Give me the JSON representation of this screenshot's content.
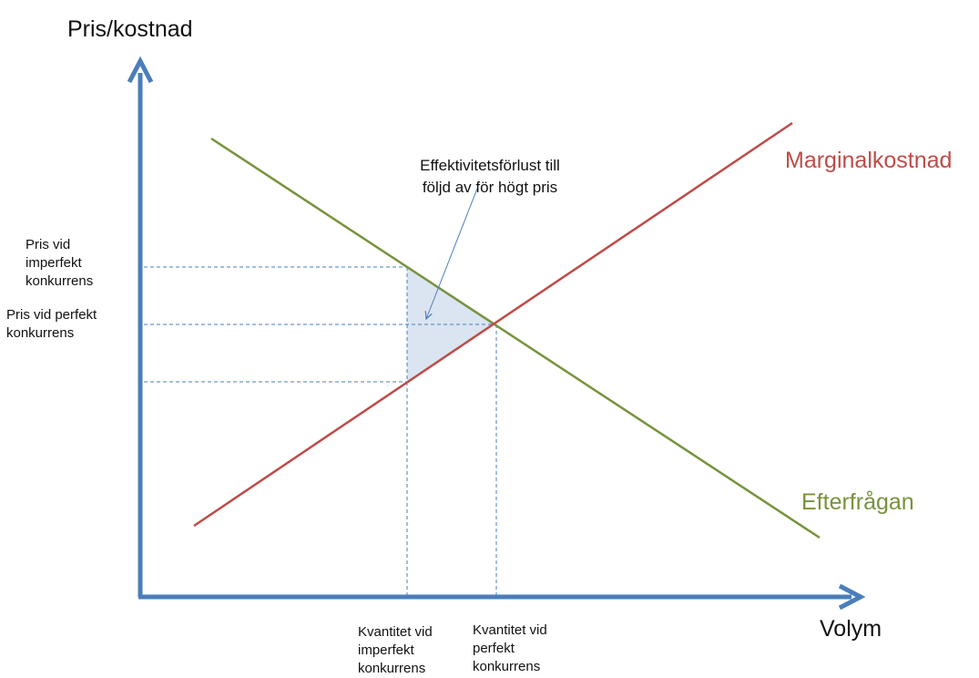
{
  "axes": {
    "y_title": "Pris/kostnad",
    "x_title": "Volym"
  },
  "curves": {
    "supply_label": "Marginalkostnad",
    "demand_label": "Efterfrågan"
  },
  "price_labels": {
    "imperfect": [
      "Pris vid",
      "imperfekt",
      "konkurrens"
    ],
    "perfect": [
      "Pris vid perfekt",
      "konkurrens"
    ]
  },
  "quantity_labels": {
    "imperfect": [
      "Kvantitet vid",
      "imperfekt",
      "konkurrens"
    ],
    "perfect": [
      "Kvantitet vid",
      "perfekt",
      "konkurrens"
    ]
  },
  "annotation": [
    "Effektivitetsförlust till",
    "följd av för högt pris"
  ],
  "colors": {
    "axis": "#4a7ebb",
    "supply": "#be4b48",
    "demand": "#77933c",
    "guide": "#4a7ebb",
    "deadweight_fill": "#dbe4f1",
    "arrow": "#4a7ebb"
  }
}
